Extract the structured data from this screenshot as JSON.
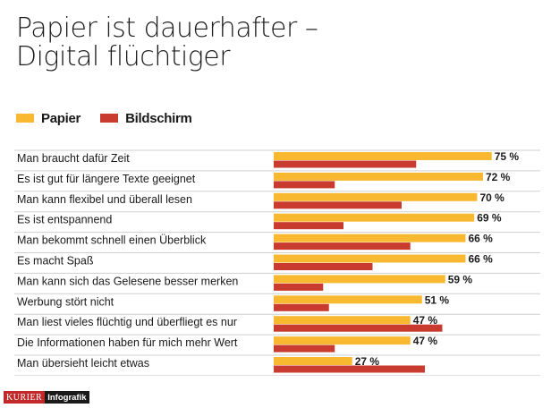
{
  "title": {
    "line1": "Papier ist dauerhafter –",
    "line2": "Digital flüchtiger"
  },
  "colors": {
    "papier": "#f8b830",
    "bildschirm": "#c93a2f",
    "divider": "#cfcfcf"
  },
  "footer": {
    "brand": "KURIER",
    "label": "Infografik"
  },
  "chart_data": {
    "type": "bar",
    "orientation": "horizontal",
    "title": "Papier ist dauerhafter – Digital flüchtiger",
    "xlabel": "",
    "ylabel": "",
    "xlim": [
      0,
      75
    ],
    "legend": "top-left",
    "grid": false,
    "categories": [
      "Man braucht dafür Zeit",
      "Es ist gut für längere Texte geeignet",
      "Man kann flexibel und überall lesen",
      "Es ist entspannend",
      "Man bekommt schnell einen Überblick",
      "Es macht Spaß",
      "Man kann sich das Gelesene besser merken",
      "Werbung stört nicht",
      "Man liest vieles flüchtig und überfliegt es nur",
      "Die Informationen haben für mich mehr Wert",
      "Man übersieht leicht etwas"
    ],
    "series": [
      {
        "name": "Papier",
        "values": [
          75,
          72,
          70,
          69,
          66,
          66,
          59,
          51,
          47,
          47,
          27
        ],
        "labels": [
          "75 %",
          "72 %",
          "70 %",
          "69 %",
          "66 %",
          "66 %",
          "59 %",
          "51 %",
          "47 %",
          "47 %",
          "27 %"
        ]
      },
      {
        "name": "Bildschirm",
        "values": [
          49,
          21,
          44,
          24,
          47,
          34,
          17,
          19,
          58,
          21,
          52
        ]
      }
    ]
  }
}
